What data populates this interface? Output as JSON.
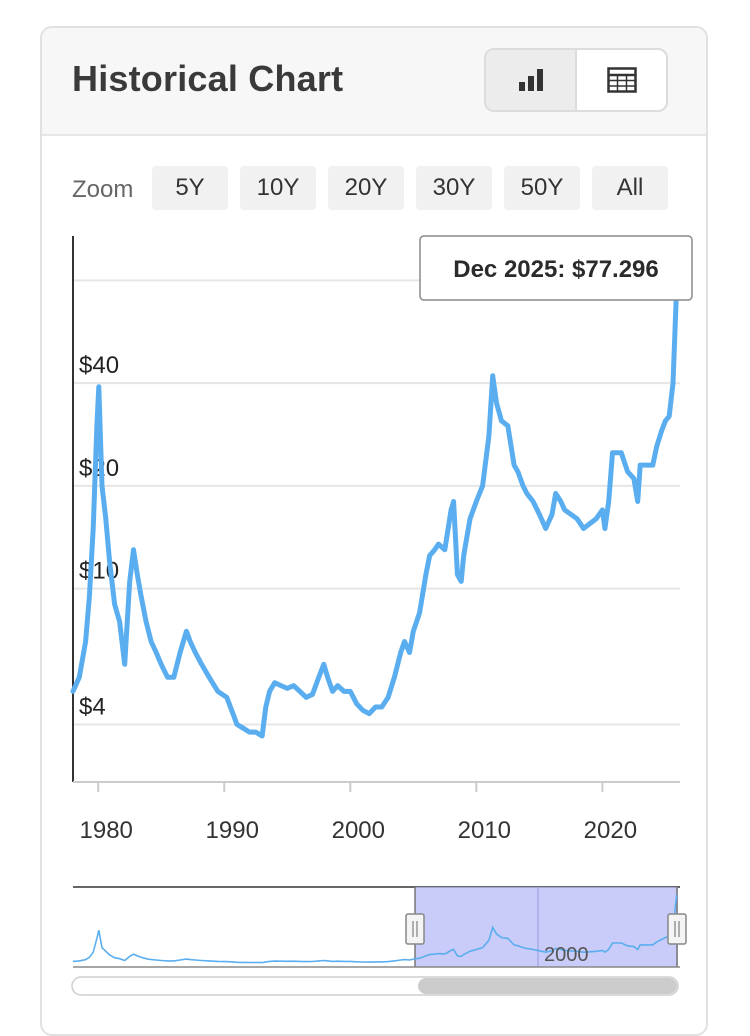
{
  "header": {
    "title": "Historical Chart"
  },
  "view_toggle": {
    "chart_icon": "bar-chart-icon",
    "table_icon": "table-grid-icon"
  },
  "zoom": {
    "label": "Zoom",
    "options": [
      "5Y",
      "10Y",
      "20Y",
      "30Y",
      "50Y",
      "All"
    ]
  },
  "colors": {
    "line": "#5aaeef",
    "navigator_fill": "#b7b9f5",
    "grid": "#e6e6e6"
  },
  "tooltip": {
    "text": "Dec 2025: $77.296"
  },
  "chart_data": {
    "type": "line",
    "title": "",
    "xlabel": "",
    "ylabel": "",
    "yscale": "log",
    "xlim": [
      1978,
      2026
    ],
    "ylim": [
      2.75,
      105
    ],
    "y_ticks": [
      {
        "label": "$4",
        "value": 4
      },
      {
        "label": "$10",
        "value": 10
      },
      {
        "label": "$20",
        "value": 20
      },
      {
        "label": "$40",
        "value": 40
      }
    ],
    "x_ticks": [
      1980,
      1990,
      2000,
      2010,
      2020
    ],
    "grid": true,
    "series": [
      {
        "x": [
          1978.0,
          1978.5,
          1979.0,
          1979.3,
          1979.6,
          1979.9,
          1980.05,
          1980.3,
          1980.6,
          1980.9,
          1981.3,
          1981.7,
          1982.1,
          1982.5,
          1982.8,
          1983.1,
          1983.4,
          1983.8,
          1984.2,
          1984.6,
          1985.0,
          1985.5,
          1986.0,
          1986.5,
          1987.0,
          1987.3,
          1987.7,
          1988.2,
          1988.8,
          1989.5,
          1990.2,
          1990.8,
          1991.0,
          1991.5,
          1992.0,
          1992.5,
          1993.0,
          1993.3,
          1993.6,
          1994.0,
          1994.5,
          1995.0,
          1995.5,
          1996.0,
          1996.5,
          1997.0,
          1997.5,
          1997.9,
          1998.2,
          1998.6,
          1999.0,
          1999.5,
          2000.0,
          2000.5,
          2001.0,
          2001.5,
          2002.0,
          2002.5,
          2003.0,
          2003.5,
          2004.0,
          2004.3,
          2004.7,
          2005.0,
          2005.5,
          2006.0,
          2006.3,
          2006.7,
          2007.0,
          2007.5,
          2008.0,
          2008.2,
          2008.5,
          2008.8,
          2009.0,
          2009.5,
          2010.0,
          2010.5,
          2011.0,
          2011.3,
          2011.6,
          2012.0,
          2012.5,
          2013.0,
          2013.3,
          2013.7,
          2014.0,
          2014.5,
          2015.0,
          2015.5,
          2016.0,
          2016.3,
          2016.7,
          2017.0,
          2017.5,
          2018.0,
          2018.5,
          2019.0,
          2019.5,
          2020.0,
          2020.2,
          2020.5,
          2020.8,
          2021.0,
          2021.5,
          2022.0,
          2022.5,
          2022.8,
          2023.0,
          2023.5,
          2024.0,
          2024.3,
          2024.7,
          2025.0,
          2025.3,
          2025.6,
          2025.9
        ],
        "values": [
          5.0,
          5.5,
          7.0,
          9.5,
          15.0,
          30.0,
          39.0,
          20.0,
          16.0,
          12.0,
          9.0,
          8.0,
          6.0,
          10.5,
          13.0,
          11.0,
          9.5,
          8.0,
          7.0,
          6.5,
          6.0,
          5.5,
          5.5,
          6.5,
          7.5,
          7.0,
          6.5,
          6.0,
          5.5,
          5.0,
          4.8,
          4.2,
          4.0,
          3.9,
          3.8,
          3.8,
          3.7,
          4.5,
          5.0,
          5.3,
          5.2,
          5.1,
          5.2,
          5.0,
          4.8,
          4.9,
          5.5,
          6.0,
          5.5,
          5.0,
          5.2,
          5.0,
          5.0,
          4.6,
          4.4,
          4.3,
          4.5,
          4.5,
          4.8,
          5.5,
          6.5,
          7.0,
          6.5,
          7.5,
          8.5,
          11.0,
          12.5,
          13.0,
          13.5,
          13.0,
          17.0,
          18.0,
          11.0,
          10.5,
          12.5,
          16.0,
          18.0,
          20.0,
          28.0,
          42.0,
          35.0,
          31.0,
          30.0,
          23.0,
          22.0,
          20.0,
          19.0,
          18.0,
          16.5,
          15.0,
          16.5,
          19.0,
          18.0,
          17.0,
          16.5,
          16.0,
          15.0,
          15.5,
          16.0,
          17.0,
          15.0,
          18.0,
          25.0,
          25.0,
          25.0,
          22.0,
          21.0,
          18.0,
          23.0,
          23.0,
          23.0,
          26.0,
          29.0,
          31.0,
          32.0,
          40.0,
          77.296
        ]
      }
    ],
    "navigator": {
      "label": "2000"
    }
  }
}
